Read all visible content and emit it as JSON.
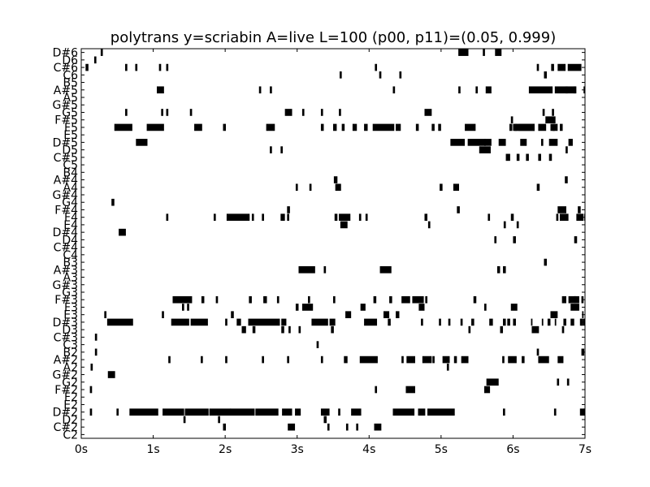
{
  "chart_data": {
    "type": "pianoroll",
    "title": "polytrans y=scriabin A=live L=100 (p00, p11)=(0.05, 0.999)",
    "xlabel": "",
    "ylabel": "",
    "xlim": [
      0,
      7
    ],
    "x_tick_values": [
      0,
      1,
      2,
      3,
      4,
      5,
      6,
      7
    ],
    "x_tick_labels": [
      "0s",
      "1s",
      "2s",
      "3s",
      "4s",
      "5s",
      "6s",
      "7s"
    ],
    "pitches": [
      "C2",
      "C#2",
      "D2",
      "D#2",
      "E2",
      "F2",
      "F#2",
      "G2",
      "G#2",
      "A2",
      "A#2",
      "B2",
      "C3",
      "C#3",
      "D3",
      "D#3",
      "E3",
      "F3",
      "F#3",
      "G3",
      "G#3",
      "A3",
      "A#3",
      "B3",
      "C4",
      "C#4",
      "D4",
      "D#4",
      "E4",
      "F4",
      "F#4",
      "G4",
      "G#4",
      "A4",
      "A#4",
      "B4",
      "C5",
      "C#5",
      "D5",
      "D#5",
      "E5",
      "F5",
      "F#5",
      "G5",
      "G#5",
      "A5",
      "A#5",
      "B5",
      "C6",
      "C#6",
      "D6",
      "D#6"
    ],
    "grid": false,
    "note_color": "#000000",
    "notes": [
      [
        "D#6",
        5.24,
        0.14
      ],
      [
        "D#6",
        5.58,
        0.03
      ],
      [
        "D#6",
        5.75,
        0.09
      ],
      [
        "D#6",
        0.27,
        0.03
      ],
      [
        "D6",
        0.18,
        0.03
      ],
      [
        "C#6",
        0.06,
        0.04
      ],
      [
        "C#6",
        0.61,
        0.03
      ],
      [
        "C#6",
        0.75,
        0.03
      ],
      [
        "C#6",
        1.08,
        0.03
      ],
      [
        "C#6",
        1.18,
        0.03
      ],
      [
        "C#6",
        4.08,
        0.03
      ],
      [
        "C#6",
        6.53,
        0.04
      ],
      [
        "C#6",
        6.62,
        0.11
      ],
      [
        "C#6",
        6.76,
        0.19
      ],
      [
        "C#6",
        7.0,
        0.1
      ],
      [
        "C#6",
        6.33,
        0.03
      ],
      [
        "C6",
        3.59,
        0.03
      ],
      [
        "C6",
        4.14,
        0.03
      ],
      [
        "C6",
        4.42,
        0.03
      ],
      [
        "C6",
        6.43,
        0.04
      ],
      [
        "A#5",
        1.05,
        0.1
      ],
      [
        "A#5",
        2.47,
        0.03
      ],
      [
        "A#5",
        2.62,
        0.03
      ],
      [
        "A#5",
        4.33,
        0.03
      ],
      [
        "A#5",
        5.24,
        0.03
      ],
      [
        "A#5",
        5.48,
        0.03
      ],
      [
        "A#5",
        5.62,
        0.08
      ],
      [
        "A#5",
        6.22,
        0.33
      ],
      [
        "A#5",
        6.58,
        0.3
      ],
      [
        "A#5",
        6.98,
        0.03
      ],
      [
        "A#5",
        6.84,
        0.03
      ],
      [
        "A#5",
        6.73,
        0.03
      ],
      [
        "G5",
        0.61,
        0.03
      ],
      [
        "G5",
        1.11,
        0.03
      ],
      [
        "G5",
        1.18,
        0.03
      ],
      [
        "G5",
        1.51,
        0.03
      ],
      [
        "G5",
        2.83,
        0.1
      ],
      [
        "G5",
        3.07,
        0.03
      ],
      [
        "G5",
        3.33,
        0.03
      ],
      [
        "G5",
        3.58,
        0.03
      ],
      [
        "G5",
        4.77,
        0.1
      ],
      [
        "G5",
        6.54,
        0.03
      ],
      [
        "G5",
        6.41,
        0.03
      ],
      [
        "F#5",
        6.45,
        0.14
      ],
      [
        "F#5",
        5.97,
        0.03
      ],
      [
        "F5",
        0.46,
        0.25
      ],
      [
        "F5",
        0.91,
        0.24
      ],
      [
        "F5",
        1.57,
        0.11
      ],
      [
        "F5",
        1.97,
        0.04
      ],
      [
        "F5",
        2.57,
        0.12
      ],
      [
        "F5",
        3.33,
        0.04
      ],
      [
        "F5",
        3.5,
        0.05
      ],
      [
        "F5",
        3.62,
        0.04
      ],
      [
        "F5",
        3.77,
        0.06
      ],
      [
        "F5",
        3.93,
        0.05
      ],
      [
        "F5",
        4.05,
        0.3
      ],
      [
        "F5",
        4.37,
        0.07
      ],
      [
        "F5",
        4.65,
        0.04
      ],
      [
        "F5",
        4.87,
        0.04
      ],
      [
        "F5",
        4.96,
        0.04
      ],
      [
        "F5",
        5.33,
        0.15
      ],
      [
        "F5",
        5.95,
        0.04
      ],
      [
        "F5",
        6.13,
        0.17
      ],
      [
        "F5",
        6.35,
        0.11
      ],
      [
        "F5",
        6.52,
        0.06
      ],
      [
        "F5",
        6.02,
        0.04
      ],
      [
        "F5",
        6.07,
        0.06
      ],
      [
        "F5",
        6.55,
        0.07
      ],
      [
        "F5",
        6.65,
        0.04
      ],
      [
        "F5",
        6.0,
        0.3
      ],
      [
        "D#5",
        0.76,
        0.16
      ],
      [
        "D#5",
        5.13,
        0.2
      ],
      [
        "D#5",
        5.37,
        0.25
      ],
      [
        "D#5",
        5.6,
        0.1
      ],
      [
        "D#5",
        5.8,
        0.1
      ],
      [
        "D#5",
        6.1,
        0.09
      ],
      [
        "D#5",
        6.39,
        0.03
      ],
      [
        "D#5",
        6.5,
        0.12
      ],
      [
        "D#5",
        6.77,
        0.06
      ],
      [
        "D#5",
        7.07,
        0.2
      ],
      [
        "D5",
        2.62,
        0.03
      ],
      [
        "D5",
        2.77,
        0.03
      ],
      [
        "D5",
        5.53,
        0.16
      ],
      [
        "D5",
        6.73,
        0.03
      ],
      [
        "C#5",
        5.9,
        0.06
      ],
      [
        "C#5",
        6.05,
        0.04
      ],
      [
        "C#5",
        6.18,
        0.04
      ],
      [
        "C#5",
        6.35,
        0.04
      ],
      [
        "C#5",
        6.5,
        0.04
      ],
      [
        "A#4",
        3.51,
        0.05
      ],
      [
        "A#4",
        6.72,
        0.04
      ],
      [
        "A4",
        2.98,
        0.03
      ],
      [
        "A4",
        3.17,
        0.03
      ],
      [
        "A4",
        3.53,
        0.08
      ],
      [
        "A4",
        4.98,
        0.04
      ],
      [
        "A4",
        5.17,
        0.08
      ],
      [
        "A4",
        6.33,
        0.04
      ],
      [
        "G4",
        0.42,
        0.04
      ],
      [
        "F#4",
        2.86,
        0.04
      ],
      [
        "F#4",
        5.22,
        0.04
      ],
      [
        "F#4",
        6.62,
        0.12
      ],
      [
        "F#4",
        6.9,
        0.04
      ],
      [
        "F4",
        1.18,
        0.03
      ],
      [
        "F4",
        1.84,
        0.03
      ],
      [
        "F4",
        2.02,
        0.32
      ],
      [
        "F4",
        2.37,
        0.03
      ],
      [
        "F4",
        2.51,
        0.03
      ],
      [
        "F4",
        2.77,
        0.06
      ],
      [
        "F4",
        2.86,
        0.03
      ],
      [
        "F4",
        3.52,
        0.04
      ],
      [
        "F4",
        3.58,
        0.16
      ],
      [
        "F4",
        3.86,
        0.03
      ],
      [
        "F4",
        3.95,
        0.03
      ],
      [
        "F4",
        4.77,
        0.04
      ],
      [
        "F4",
        5.65,
        0.03
      ],
      [
        "F4",
        5.97,
        0.04
      ],
      [
        "F4",
        6.6,
        0.03
      ],
      [
        "F4",
        6.65,
        0.12
      ],
      [
        "F4",
        6.88,
        0.1
      ],
      [
        "F4",
        6.99,
        0.22
      ],
      [
        "E4",
        3.6,
        0.1
      ],
      [
        "E4",
        4.82,
        0.03
      ],
      [
        "E4",
        5.87,
        0.03
      ],
      [
        "E4",
        6.05,
        0.03
      ],
      [
        "D#4",
        0.52,
        0.1
      ],
      [
        "D4",
        5.74,
        0.03
      ],
      [
        "D4",
        6.0,
        0.04
      ],
      [
        "D4",
        6.85,
        0.04
      ],
      [
        "A#3",
        3.02,
        0.23
      ],
      [
        "A#3",
        3.37,
        0.03
      ],
      [
        "A#3",
        4.15,
        0.16
      ],
      [
        "A#3",
        5.78,
        0.04
      ],
      [
        "A#3",
        5.86,
        0.04
      ],
      [
        "B3",
        6.43,
        0.04
      ],
      [
        "F#3",
        1.27,
        0.27
      ],
      [
        "F#3",
        1.67,
        0.04
      ],
      [
        "F#3",
        1.87,
        0.03
      ],
      [
        "F#3",
        2.33,
        0.04
      ],
      [
        "F#3",
        2.53,
        0.05
      ],
      [
        "F#3",
        2.72,
        0.03
      ],
      [
        "F#3",
        3.15,
        0.03
      ],
      [
        "F#3",
        3.5,
        0.03
      ],
      [
        "F#3",
        4.06,
        0.04
      ],
      [
        "F#3",
        4.28,
        0.04
      ],
      [
        "F#3",
        4.45,
        0.12
      ],
      [
        "F#3",
        4.6,
        0.16
      ],
      [
        "F#3",
        4.78,
        0.03
      ],
      [
        "F#3",
        5.45,
        0.04
      ],
      [
        "F#3",
        6.77,
        0.15
      ],
      [
        "F#3",
        6.95,
        0.03
      ],
      [
        "F#3",
        6.68,
        0.06
      ],
      [
        "F#3",
        7.0,
        0.2
      ],
      [
        "F#3",
        6.85,
        0.02
      ],
      [
        "F3",
        1.4,
        0.03
      ],
      [
        "F3",
        1.47,
        0.03
      ],
      [
        "F3",
        2.98,
        0.04
      ],
      [
        "F3",
        3.07,
        0.15
      ],
      [
        "F3",
        3.88,
        0.07
      ],
      [
        "F3",
        4.69,
        0.08
      ],
      [
        "F3",
        5.6,
        0.03
      ],
      [
        "F3",
        5.97,
        0.09
      ],
      [
        "F3",
        6.8,
        0.12
      ],
      [
        "F3",
        7.2,
        0.06
      ],
      [
        "E3",
        0.32,
        0.03
      ],
      [
        "E3",
        1.12,
        0.03
      ],
      [
        "E3",
        2.08,
        0.04
      ],
      [
        "E3",
        3.67,
        0.08
      ],
      [
        "E3",
        4.2,
        0.08
      ],
      [
        "E3",
        4.37,
        0.05
      ],
      [
        "E3",
        6.52,
        0.1
      ],
      [
        "E3",
        6.96,
        0.02
      ],
      [
        "D#3",
        0.36,
        0.36
      ],
      [
        "D#3",
        1.25,
        0.25
      ],
      [
        "D#3",
        1.52,
        0.24
      ],
      [
        "D#3",
        2.0,
        0.03
      ],
      [
        "D#3",
        2.16,
        0.06
      ],
      [
        "D#3",
        2.32,
        0.44
      ],
      [
        "D#3",
        2.78,
        0.07
      ],
      [
        "D#3",
        3.2,
        0.23
      ],
      [
        "D#3",
        3.45,
        0.08
      ],
      [
        "D#3",
        3.93,
        0.18
      ],
      [
        "D#3",
        4.26,
        0.04
      ],
      [
        "D#3",
        4.72,
        0.03
      ],
      [
        "D#3",
        4.97,
        0.03
      ],
      [
        "D#3",
        5.1,
        0.03
      ],
      [
        "D#3",
        5.27,
        0.03
      ],
      [
        "D#3",
        5.42,
        0.04
      ],
      [
        "D#3",
        5.67,
        0.05
      ],
      [
        "D#3",
        5.92,
        0.04
      ],
      [
        "D#3",
        6.7,
        0.04
      ],
      [
        "D#3",
        6.8,
        0.05
      ],
      [
        "D#3",
        6.93,
        0.03
      ],
      [
        "D#3",
        7.12,
        0.07
      ],
      [
        "D#3",
        6.97,
        0.04
      ],
      [
        "D#3",
        6.48,
        0.04
      ],
      [
        "D#3",
        6.4,
        0.02
      ],
      [
        "D#3",
        6.25,
        0.02
      ],
      [
        "D#3",
        6.0,
        0.04
      ],
      [
        "D#3",
        5.86,
        0.04
      ],
      [
        "D#3",
        6.95,
        0.02
      ],
      [
        "D#3",
        6.58,
        0.02
      ],
      [
        "D3",
        2.23,
        0.06
      ],
      [
        "D3",
        2.38,
        0.04
      ],
      [
        "D3",
        2.78,
        0.04
      ],
      [
        "D3",
        2.88,
        0.03
      ],
      [
        "D3",
        3.02,
        0.03
      ],
      [
        "D3",
        3.47,
        0.04
      ],
      [
        "D3",
        5.38,
        0.03
      ],
      [
        "D3",
        5.82,
        0.04
      ],
      [
        "D3",
        6.26,
        0.1
      ],
      [
        "D3",
        6.68,
        0.03
      ],
      [
        "C3",
        3.27,
        0.03
      ],
      [
        "C#3",
        0.19,
        0.03
      ],
      [
        "B2",
        0.19,
        0.03
      ],
      [
        "B2",
        6.33,
        0.03
      ],
      [
        "B2",
        6.95,
        0.04
      ],
      [
        "A#2",
        1.21,
        0.03
      ],
      [
        "A#2",
        1.66,
        0.03
      ],
      [
        "A#2",
        2.0,
        0.03
      ],
      [
        "A#2",
        2.51,
        0.03
      ],
      [
        "A#2",
        2.86,
        0.03
      ],
      [
        "A#2",
        3.33,
        0.03
      ],
      [
        "A#2",
        3.65,
        0.05
      ],
      [
        "A#2",
        3.87,
        0.25
      ],
      [
        "A#2",
        4.45,
        0.03
      ],
      [
        "A#2",
        4.52,
        0.12
      ],
      [
        "A#2",
        4.74,
        0.13
      ],
      [
        "A#2",
        4.88,
        0.03
      ],
      [
        "A#2",
        5.02,
        0.1
      ],
      [
        "A#2",
        5.18,
        0.04
      ],
      [
        "A#2",
        5.28,
        0.1
      ],
      [
        "A#2",
        5.85,
        0.03
      ],
      [
        "A#2",
        5.93,
        0.12
      ],
      [
        "A#2",
        6.12,
        0.04
      ],
      [
        "A#2",
        6.35,
        0.15
      ],
      [
        "A#2",
        6.62,
        0.08
      ],
      [
        "A2",
        0.13,
        0.03
      ],
      [
        "A2",
        5.08,
        0.03
      ],
      [
        "G#2",
        0.37,
        0.1
      ],
      [
        "G2",
        5.63,
        0.17
      ],
      [
        "G2",
        6.61,
        0.03
      ],
      [
        "G2",
        6.75,
        0.03
      ],
      [
        "F#2",
        0.12,
        0.03
      ],
      [
        "F#2",
        4.08,
        0.03
      ],
      [
        "F#2",
        4.51,
        0.13
      ],
      [
        "F#2",
        5.6,
        0.08
      ],
      [
        "D#2",
        0.12,
        0.03
      ],
      [
        "D#2",
        0.49,
        0.03
      ],
      [
        "D#2",
        0.67,
        0.4
      ],
      [
        "D#2",
        1.13,
        0.3
      ],
      [
        "D#2",
        1.44,
        0.33
      ],
      [
        "D#2",
        1.78,
        0.3
      ],
      [
        "D#2",
        2.07,
        0.34
      ],
      [
        "D#2",
        2.42,
        0.32
      ],
      [
        "D#2",
        2.79,
        0.14
      ],
      [
        "D#2",
        2.97,
        0.08
      ],
      [
        "D#2",
        3.33,
        0.12
      ],
      [
        "D#2",
        3.57,
        0.03
      ],
      [
        "D#2",
        3.75,
        0.14
      ],
      [
        "D#2",
        4.33,
        0.3
      ],
      [
        "D#2",
        4.68,
        0.1
      ],
      [
        "D#2",
        4.81,
        0.38
      ],
      [
        "D#2",
        5.86,
        0.03
      ],
      [
        "D#2",
        6.57,
        0.03
      ],
      [
        "D#2",
        6.98,
        0.03
      ],
      [
        "D#2",
        6.93,
        0.1
      ],
      [
        "D#2",
        7.04,
        0.03
      ],
      [
        "D#2",
        7.1,
        0.05
      ],
      [
        "D2",
        1.42,
        0.03
      ],
      [
        "D2",
        1.9,
        0.03
      ],
      [
        "D2",
        3.37,
        0.04
      ],
      [
        "C#2",
        1.97,
        0.04
      ],
      [
        "C#2",
        2.87,
        0.1
      ],
      [
        "C#2",
        3.42,
        0.03
      ],
      [
        "C#2",
        3.68,
        0.03
      ],
      [
        "C#2",
        3.82,
        0.03
      ],
      [
        "C#2",
        4.07,
        0.1
      ]
    ]
  }
}
